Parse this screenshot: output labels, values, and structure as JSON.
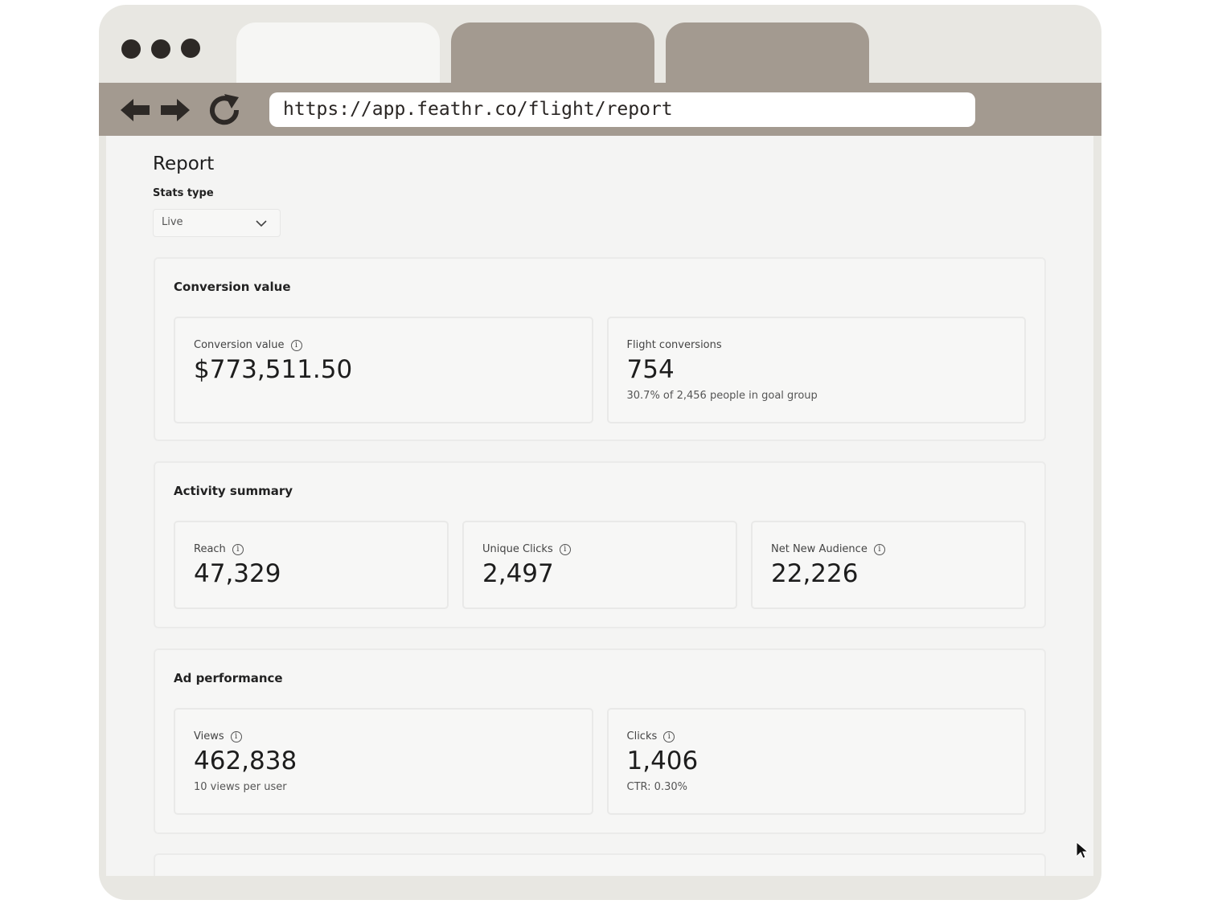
{
  "browser": {
    "url": "https://app.feathr.co/flight/report"
  },
  "page": {
    "title": "Report",
    "stats_type_label": "Stats type",
    "stats_type_value": "Live"
  },
  "sections": [
    {
      "title": "Conversion value",
      "cards": [
        {
          "label": "Conversion value",
          "value": "$773,511.50"
        },
        {
          "label": "Flight conversions",
          "value": "754",
          "note": "30.7% of 2,456 people in goal group"
        }
      ]
    },
    {
      "title": "Activity summary",
      "cards": [
        {
          "label": "Reach",
          "value": "47,329"
        },
        {
          "label": "Unique Clicks",
          "value": "2,497"
        },
        {
          "label": "Net New Audience",
          "value": "22,226"
        }
      ]
    },
    {
      "title": "Ad performance",
      "cards": [
        {
          "label": "Views",
          "value": "462,838",
          "note": "10 views per user"
        },
        {
          "label": "Clicks",
          "value": "1,406",
          "note": "CTR: 0.30%"
        }
      ]
    }
  ]
}
